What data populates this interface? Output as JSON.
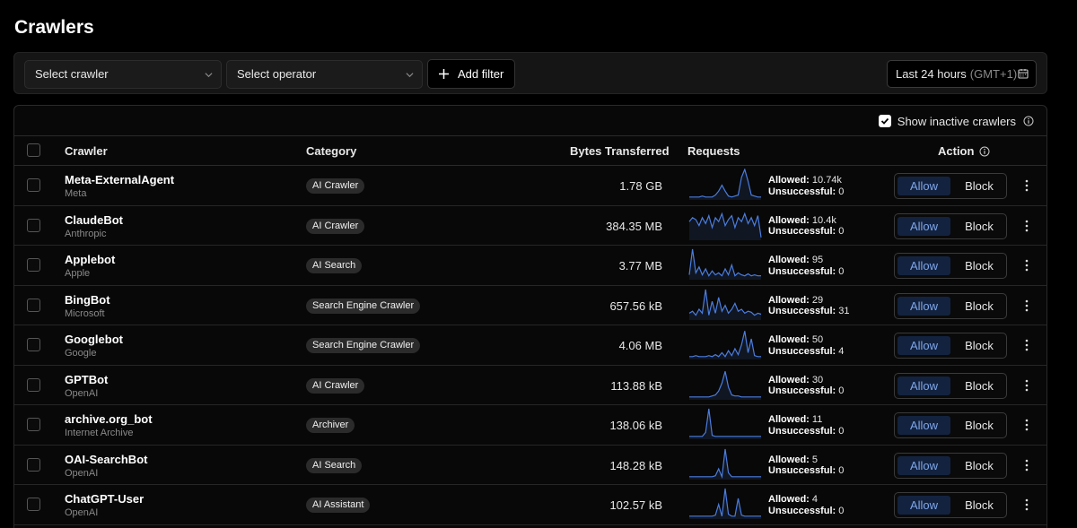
{
  "page": {
    "title": "Crawlers"
  },
  "filters": {
    "crawler_placeholder": "Select crawler",
    "operator_placeholder": "Select operator",
    "add_filter_label": "Add filter",
    "date_range": "Last 24 hours",
    "timezone": "(GMT+1)"
  },
  "table": {
    "show_inactive_label": "Show inactive crawlers",
    "show_inactive_checked": true,
    "columns": {
      "crawler": "Crawler",
      "category": "Category",
      "bytes": "Bytes Transferred",
      "requests": "Requests",
      "action": "Action"
    },
    "allowed_label": "Allowed:",
    "unsuccessful_label": "Unsuccessful:",
    "allow_label": "Allow",
    "block_label": "Block",
    "rows": [
      {
        "name": "Meta-ExternalAgent",
        "operator": "Meta",
        "category": "AI Crawler",
        "bytes": "1.78 GB",
        "allowed": "10.74k",
        "unsuccessful": "0",
        "action": "Allow",
        "spark": [
          2,
          2,
          2,
          2,
          3,
          2,
          2,
          2,
          4,
          8,
          14,
          8,
          3,
          2,
          3,
          4,
          22,
          30,
          18,
          4,
          3,
          2,
          2
        ]
      },
      {
        "name": "ClaudeBot",
        "operator": "Anthropic",
        "category": "AI Crawler",
        "bytes": "384.35 MB",
        "allowed": "10.4k",
        "unsuccessful": "0",
        "action": "Allow",
        "spark": [
          18,
          22,
          20,
          14,
          22,
          16,
          24,
          12,
          22,
          18,
          26,
          14,
          20,
          24,
          12,
          22,
          18,
          26,
          16,
          22,
          14,
          24,
          2
        ]
      },
      {
        "name": "Applebot",
        "operator": "Apple",
        "category": "AI Search",
        "bytes": "3.77 MB",
        "allowed": "95",
        "unsuccessful": "0",
        "action": "Allow",
        "spark": [
          4,
          30,
          6,
          12,
          4,
          10,
          3,
          8,
          4,
          6,
          3,
          10,
          4,
          14,
          3,
          6,
          4,
          3,
          5,
          3,
          4,
          3,
          3
        ]
      },
      {
        "name": "BingBot",
        "operator": "Microsoft",
        "category": "Search Engine Crawler",
        "bytes": "657.56 kB",
        "allowed": "29",
        "unsuccessful": "31",
        "action": "Allow",
        "spark": [
          6,
          8,
          4,
          10,
          6,
          30,
          4,
          18,
          6,
          22,
          8,
          14,
          6,
          10,
          16,
          8,
          10,
          6,
          8,
          7,
          4,
          6,
          5
        ]
      },
      {
        "name": "Googlebot",
        "operator": "Google",
        "category": "Search Engine Crawler",
        "bytes": "4.06 MB",
        "allowed": "50",
        "unsuccessful": "4",
        "action": "Allow",
        "spark": [
          2,
          2,
          3,
          2,
          2,
          2,
          3,
          2,
          4,
          2,
          6,
          2,
          8,
          3,
          10,
          4,
          14,
          28,
          6,
          20,
          3,
          2,
          2
        ]
      },
      {
        "name": "GPTBot",
        "operator": "OpenAI",
        "category": "AI Crawler",
        "bytes": "113.88 kB",
        "allowed": "30",
        "unsuccessful": "0",
        "action": "Allow",
        "spark": [
          2,
          2,
          2,
          2,
          2,
          2,
          2,
          3,
          4,
          8,
          16,
          28,
          12,
          4,
          3,
          3,
          2,
          2,
          2,
          2,
          2,
          2,
          2
        ]
      },
      {
        "name": "archive.org_bot",
        "operator": "Internet Archive",
        "category": "Archiver",
        "bytes": "138.06 kB",
        "allowed": "11",
        "unsuccessful": "0",
        "action": "Allow",
        "spark": [
          2,
          2,
          2,
          2,
          2,
          6,
          30,
          3,
          2,
          2,
          2,
          2,
          2,
          2,
          2,
          2,
          2,
          2,
          2,
          2,
          2,
          2,
          2
        ]
      },
      {
        "name": "OAI-SearchBot",
        "operator": "OpenAI",
        "category": "AI Search",
        "bytes": "148.28 kB",
        "allowed": "5",
        "unsuccessful": "0",
        "action": "Allow",
        "spark": [
          2,
          2,
          2,
          2,
          2,
          2,
          2,
          2,
          3,
          10,
          2,
          30,
          6,
          2,
          2,
          2,
          2,
          2,
          2,
          2,
          2,
          2,
          2
        ]
      },
      {
        "name": "ChatGPT-User",
        "operator": "OpenAI",
        "category": "AI Assistant",
        "bytes": "102.57 kB",
        "allowed": "4",
        "unsuccessful": "0",
        "action": "Allow",
        "spark": [
          2,
          2,
          2,
          2,
          2,
          2,
          2,
          2,
          3,
          14,
          2,
          30,
          4,
          2,
          2,
          20,
          3,
          2,
          2,
          2,
          2,
          2,
          2
        ]
      }
    ]
  },
  "colors": {
    "accent": "#4a7de0",
    "allow_bg": "#13233f",
    "allow_text": "#7fa6ea"
  },
  "icons": [
    "chevron-down-icon",
    "plus-icon",
    "calendar-icon",
    "check-icon",
    "info-icon",
    "more-vertical-icon"
  ]
}
